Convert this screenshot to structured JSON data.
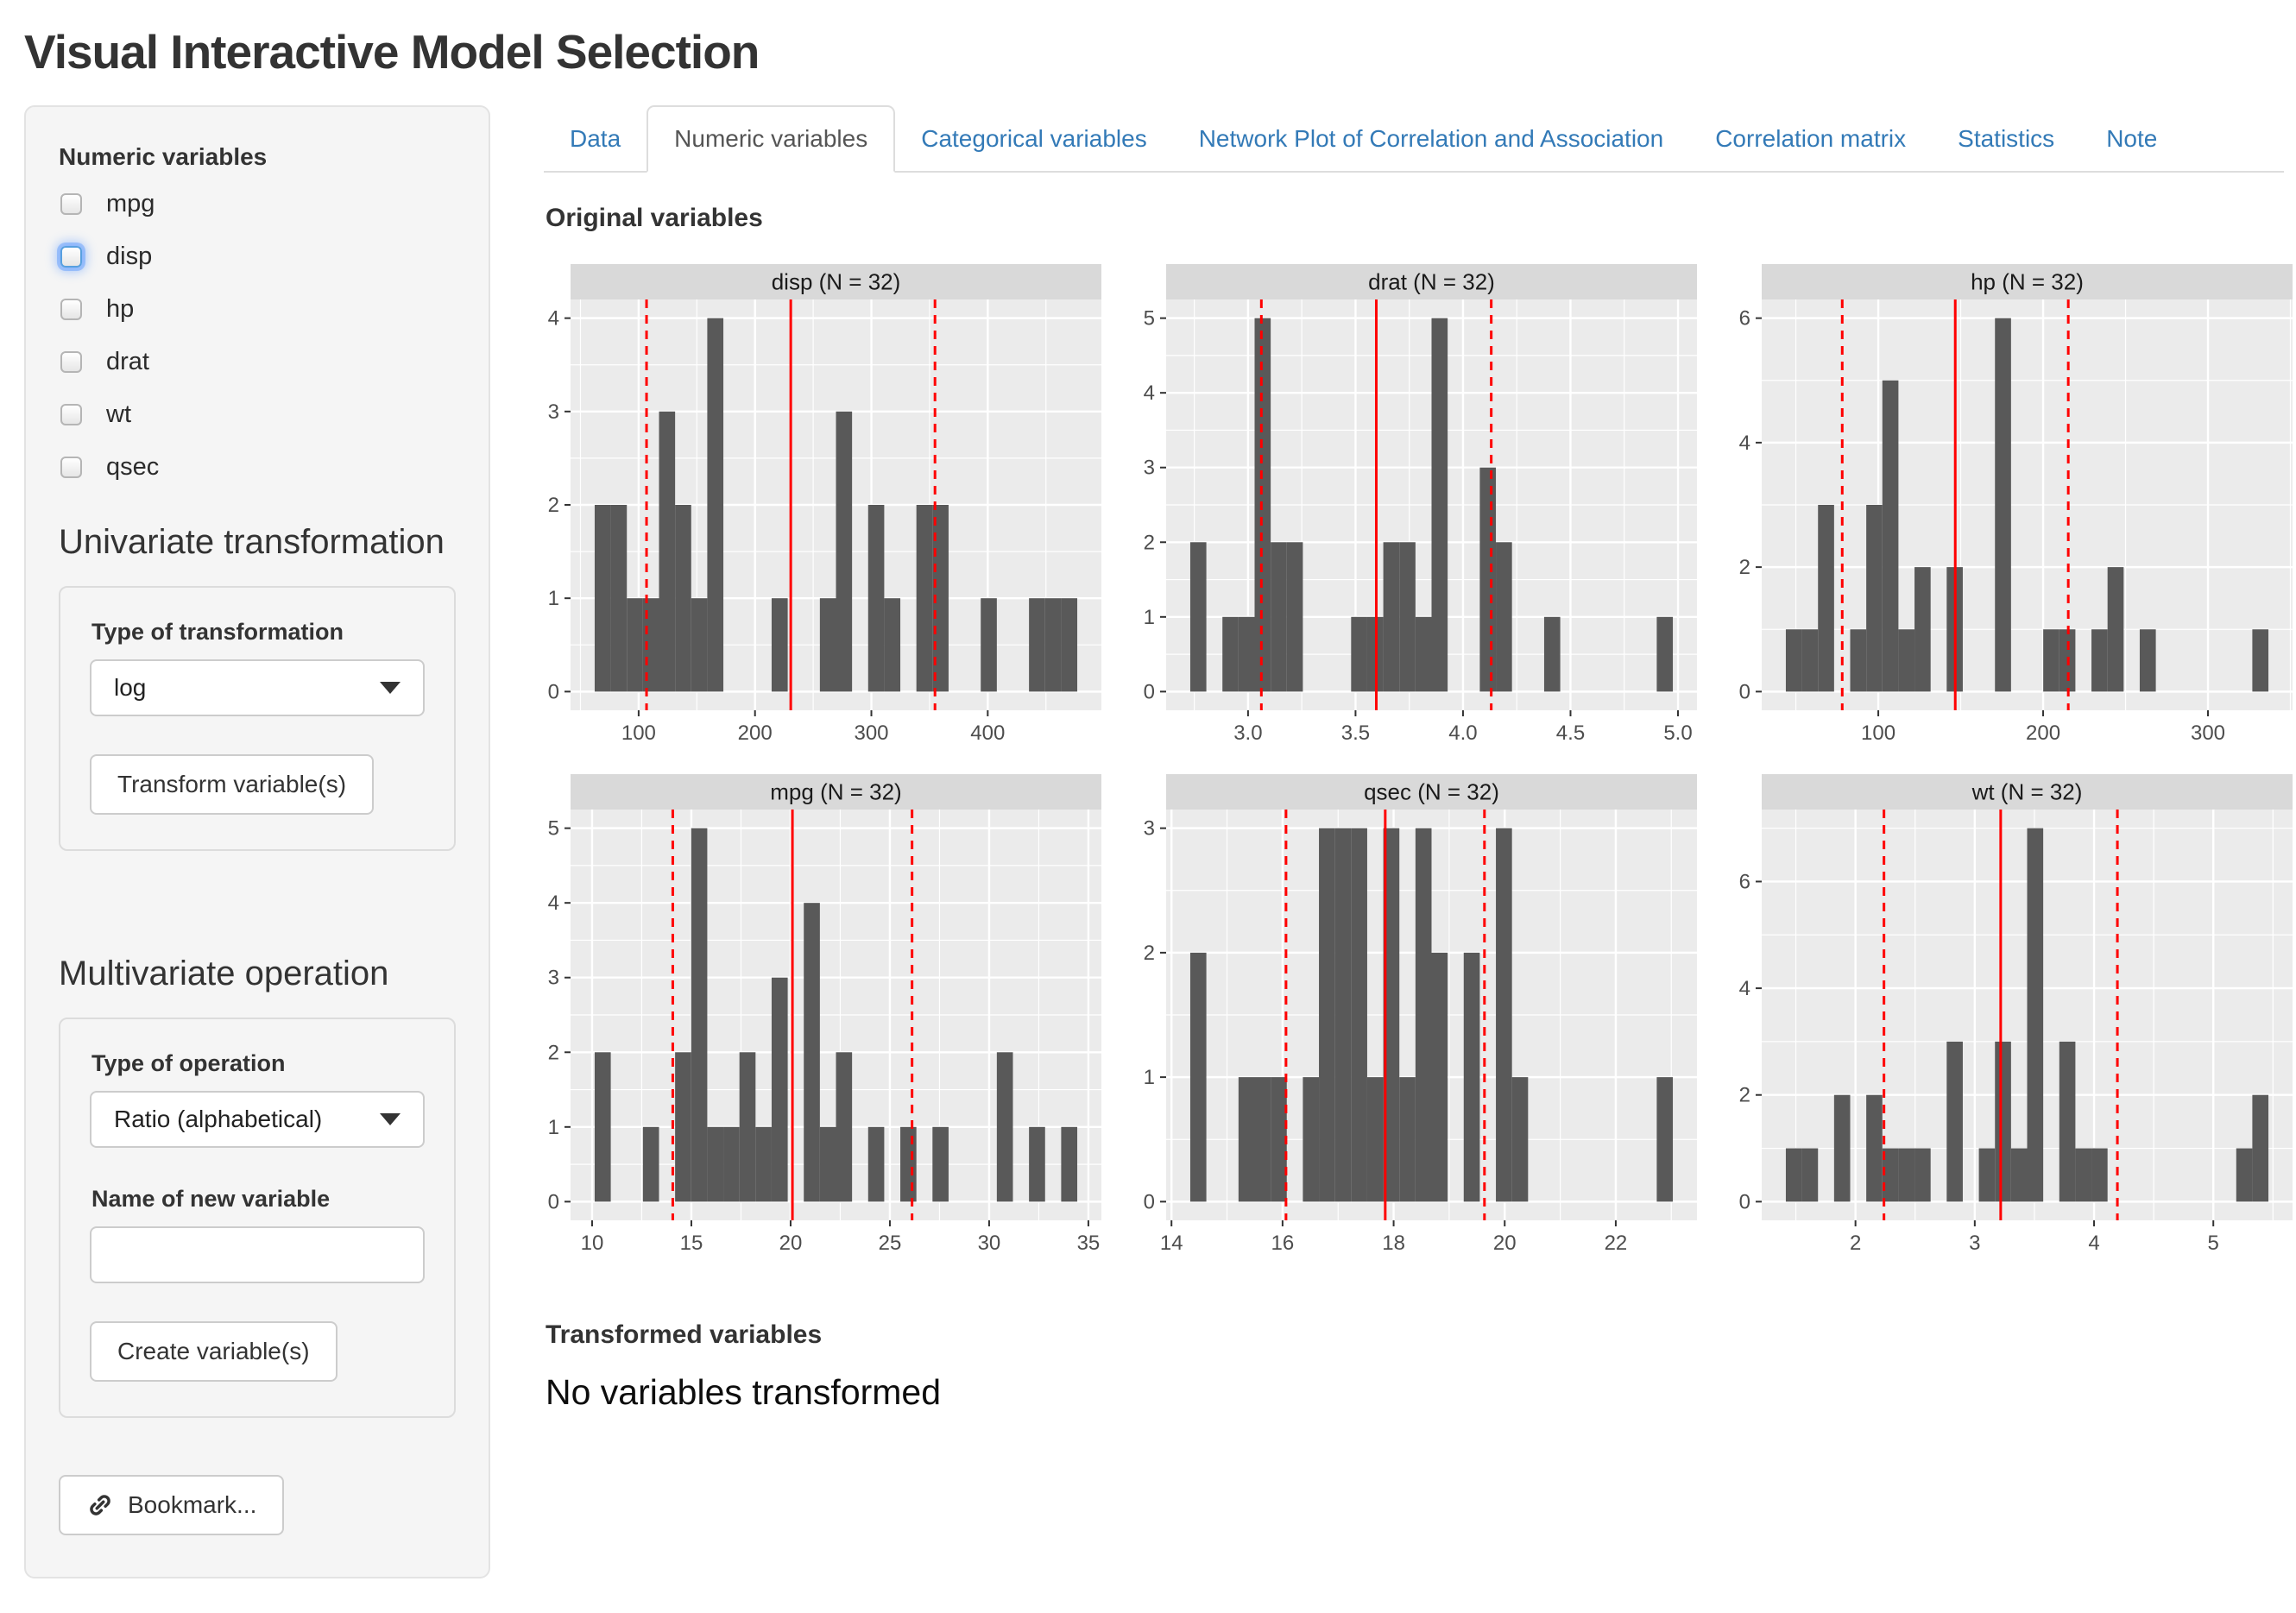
{
  "page": {
    "title": "Visual Interactive Model Selection"
  },
  "sidebar": {
    "numeric_variables_label": "Numeric variables",
    "variables": [
      {
        "label": "mpg",
        "checked": false,
        "focused": false
      },
      {
        "label": "disp",
        "checked": false,
        "focused": true
      },
      {
        "label": "hp",
        "checked": false,
        "focused": false
      },
      {
        "label": "drat",
        "checked": false,
        "focused": false
      },
      {
        "label": "wt",
        "checked": false,
        "focused": false
      },
      {
        "label": "qsec",
        "checked": false,
        "focused": false
      }
    ],
    "univariate_heading": "Univariate transformation",
    "type_of_transformation_label": "Type of transformation",
    "transformation_value": "log",
    "transform_button": "Transform variable(s)",
    "multivariate_heading": "Multivariate operation",
    "type_of_operation_label": "Type of operation",
    "operation_value": "Ratio (alphabetical)",
    "new_variable_label": "Name of new variable",
    "new_variable_value": "",
    "create_button": "Create variable(s)",
    "bookmark_button": "Bookmark...",
    "bookmark_icon": "link-icon"
  },
  "tabs": [
    {
      "label": "Data",
      "active": false
    },
    {
      "label": "Numeric variables",
      "active": true
    },
    {
      "label": "Categorical variables",
      "active": false
    },
    {
      "label": "Network Plot of Correlation and Association",
      "active": false
    },
    {
      "label": "Correlation matrix",
      "active": false
    },
    {
      "label": "Statistics",
      "active": false
    },
    {
      "label": "Note",
      "active": false
    }
  ],
  "main": {
    "original_heading": "Original variables",
    "transformed_heading": "Transformed variables",
    "transformed_empty": "No variables transformed"
  },
  "colors": {
    "panel_bg": "#EBEBEB",
    "strip_bg": "#D9D9D9",
    "grid": "#FFFFFF",
    "bar": "#595959",
    "mean_line": "#FF0000",
    "sd_line": "#FF0000",
    "axis_text": "#4D4D4D",
    "tick_mark": "#333333",
    "strip_text": "#1A1A1A",
    "tab_link": "#337ab7"
  },
  "chart_data": [
    {
      "type": "bar",
      "name": "disp",
      "title": "disp (N = 32)",
      "n": 32,
      "bin_start": 62.214,
      "binwidth": 13.824,
      "counts": [
        2,
        2,
        1,
        1,
        3,
        2,
        1,
        4,
        0,
        0,
        0,
        1,
        0,
        0,
        1,
        3,
        0,
        2,
        1,
        0,
        2,
        2,
        0,
        0,
        1,
        0,
        0,
        1,
        1,
        1
      ],
      "mean": 230.722,
      "sd": 123.939,
      "x_ticks": [
        100,
        200,
        300,
        400
      ],
      "x_tick_labels": [
        "100",
        "200",
        "300",
        "400"
      ],
      "y_ticks": [
        0,
        1,
        2,
        3,
        4
      ],
      "y_tick_labels": [
        "0",
        "1",
        "2",
        "3",
        "4"
      ],
      "y_max": 4,
      "xlabel": "",
      "ylabel": "",
      "grid": true,
      "legend": "none"
    },
    {
      "type": "bar",
      "name": "drat",
      "title": "drat (N = 32)",
      "n": 32,
      "bin_start": 2.7312,
      "binwidth": 0.074828,
      "counts": [
        2,
        0,
        1,
        1,
        5,
        2,
        2,
        0,
        0,
        0,
        1,
        1,
        2,
        2,
        1,
        5,
        0,
        0,
        3,
        2,
        0,
        0,
        1,
        0,
        0,
        0,
        0,
        0,
        0,
        1
      ],
      "mean": 3.5966,
      "sd": 0.5347,
      "x_ticks": [
        3.0,
        3.5,
        4.0,
        4.5,
        5.0
      ],
      "x_tick_labels": [
        "3.0",
        "3.5",
        "4.0",
        "4.5",
        "5.0"
      ],
      "y_ticks": [
        0,
        1,
        2,
        3,
        4,
        5
      ],
      "y_tick_labels": [
        "0",
        "1",
        "2",
        "3",
        "4",
        "5"
      ],
      "y_max": 5,
      "xlabel": "",
      "ylabel": "",
      "grid": true,
      "legend": "none"
    },
    {
      "type": "bar",
      "name": "hp",
      "title": "hp (N = 32)",
      "n": 32,
      "bin_start": 43.914,
      "binwidth": 9.7586,
      "counts": [
        1,
        1,
        3,
        0,
        1,
        3,
        5,
        1,
        2,
        0,
        2,
        0,
        0,
        6,
        0,
        0,
        1,
        1,
        0,
        1,
        2,
        0,
        1,
        0,
        0,
        0,
        0,
        0,
        0,
        1
      ],
      "mean": 146.688,
      "sd": 68.563,
      "x_ticks": [
        100,
        200,
        300
      ],
      "x_tick_labels": [
        "100",
        "200",
        "300"
      ],
      "y_ticks": [
        0,
        2,
        4,
        6
      ],
      "y_tick_labels": [
        "0",
        "2",
        "4",
        "6"
      ],
      "y_max": 6,
      "xlabel": "",
      "ylabel": "",
      "grid": true,
      "legend": "none"
    },
    {
      "type": "bar",
      "name": "mpg",
      "title": "mpg (N = 32)",
      "n": 32,
      "bin_start": 10.1293,
      "binwidth": 0.810345,
      "counts": [
        2,
        0,
        0,
        1,
        0,
        2,
        5,
        1,
        1,
        2,
        1,
        3,
        0,
        4,
        1,
        2,
        0,
        1,
        0,
        1,
        0,
        1,
        0,
        0,
        0,
        2,
        0,
        1,
        0,
        1
      ],
      "mean": 20.0906,
      "sd": 6.0269,
      "x_ticks": [
        10,
        15,
        20,
        25,
        30,
        35
      ],
      "x_tick_labels": [
        "10",
        "15",
        "20",
        "25",
        "30",
        "35"
      ],
      "y_ticks": [
        0,
        1,
        2,
        3,
        4,
        5
      ],
      "y_tick_labels": [
        "0",
        "1",
        "2",
        "3",
        "4",
        "5"
      ],
      "y_max": 5,
      "xlabel": "",
      "ylabel": "",
      "grid": true,
      "legend": "none"
    },
    {
      "type": "bar",
      "name": "qsec",
      "title": "qsec (N = 32)",
      "n": 32,
      "bin_start": 14.3379,
      "binwidth": 0.289655,
      "counts": [
        2,
        0,
        0,
        1,
        1,
        1,
        0,
        1,
        3,
        3,
        3,
        1,
        3,
        1,
        3,
        2,
        0,
        2,
        0,
        3,
        1,
        0,
        0,
        0,
        0,
        0,
        0,
        0,
        0,
        1
      ],
      "mean": 17.8488,
      "sd": 1.7869,
      "x_ticks": [
        14,
        16,
        18,
        20,
        22
      ],
      "x_tick_labels": [
        "14",
        "16",
        "18",
        "20",
        "22"
      ],
      "y_ticks": [
        0,
        1,
        2,
        3
      ],
      "y_tick_labels": [
        "0",
        "1",
        "2",
        "3"
      ],
      "y_max": 3,
      "xlabel": "",
      "ylabel": "",
      "grid": true,
      "legend": "none"
    },
    {
      "type": "bar",
      "name": "wt",
      "title": "wt (N = 32)",
      "n": 32,
      "bin_start": 1.41605,
      "binwidth": 0.134862,
      "counts": [
        1,
        1,
        0,
        2,
        0,
        2,
        1,
        1,
        1,
        0,
        3,
        0,
        1,
        3,
        1,
        7,
        0,
        3,
        1,
        1,
        0,
        0,
        0,
        0,
        0,
        0,
        0,
        0,
        1,
        2
      ],
      "mean": 3.21725,
      "sd": 0.97846,
      "x_ticks": [
        2,
        3,
        4,
        5
      ],
      "x_tick_labels": [
        "2",
        "3",
        "4",
        "5"
      ],
      "y_ticks": [
        0,
        2,
        4,
        6
      ],
      "y_tick_labels": [
        "0",
        "2",
        "4",
        "6"
      ],
      "y_max": 7,
      "xlabel": "",
      "ylabel": "",
      "grid": true,
      "legend": "none"
    }
  ]
}
